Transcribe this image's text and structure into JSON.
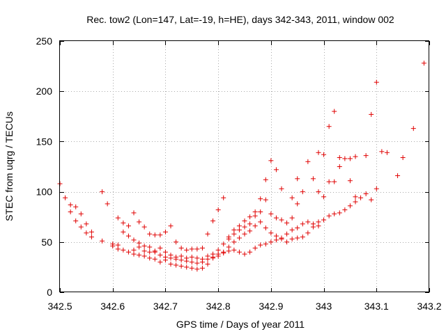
{
  "chart_data": {
    "type": "scatter",
    "title": "Rec. tow2 (Lon=147, Lat=-19, h=HE), days 342-343, 2011, window 002",
    "xlabel": "GPS time / Days of year 2011",
    "ylabel": "STEC from uqrg / TECUs",
    "xlim": [
      342.5,
      343.2
    ],
    "ylim": [
      0,
      250
    ],
    "xticks": [
      "342.5",
      "342.6",
      "342.7",
      "342.8",
      "342.9",
      "343",
      "343.1",
      "343.2"
    ],
    "yticks": [
      "0",
      "50",
      "100",
      "150",
      "200",
      "250"
    ],
    "grid": true,
    "marker": "+",
    "color": "#e00000",
    "series": [
      {
        "points": [
          [
            342.5,
            108
          ],
          [
            342.51,
            94
          ],
          [
            342.52,
            87
          ],
          [
            342.53,
            85
          ],
          [
            342.54,
            78
          ],
          [
            342.55,
            68
          ],
          [
            342.56,
            60
          ],
          [
            342.58,
            100
          ],
          [
            342.59,
            88
          ],
          [
            342.61,
            74
          ],
          [
            342.62,
            69
          ],
          [
            342.63,
            66
          ],
          [
            342.64,
            79
          ],
          [
            342.65,
            70
          ],
          [
            342.66,
            65
          ],
          [
            342.67,
            58
          ],
          [
            342.68,
            57
          ],
          [
            342.69,
            57
          ],
          [
            342.7,
            60
          ],
          [
            342.71,
            66
          ],
          [
            342.72,
            50
          ],
          [
            342.73,
            44
          ],
          [
            342.74,
            42
          ],
          [
            342.75,
            43
          ],
          [
            342.76,
            43
          ],
          [
            342.77,
            44
          ],
          [
            342.78,
            58
          ],
          [
            342.79,
            71
          ],
          [
            342.8,
            82
          ],
          [
            342.81,
            94
          ],
          [
            342.82,
            55
          ],
          [
            342.83,
            62
          ],
          [
            342.84,
            66
          ],
          [
            342.85,
            71
          ],
          [
            342.86,
            75
          ],
          [
            342.87,
            80
          ],
          [
            342.88,
            93
          ],
          [
            342.89,
            112
          ],
          [
            342.9,
            131
          ],
          [
            342.91,
            122
          ],
          [
            342.92,
            103
          ],
          [
            342.94,
            94
          ],
          [
            342.95,
            113
          ],
          [
            342.97,
            130
          ],
          [
            342.99,
            139
          ],
          [
            343.0,
            137
          ],
          [
            343.01,
            165
          ],
          [
            343.02,
            180
          ],
          [
            343.03,
            134
          ],
          [
            343.04,
            133
          ],
          [
            343.05,
            133
          ],
          [
            343.06,
            135
          ],
          [
            343.08,
            136
          ],
          [
            343.09,
            177
          ],
          [
            343.1,
            209
          ],
          [
            343.11,
            140
          ],
          [
            343.12,
            139
          ],
          [
            343.14,
            116
          ],
          [
            343.15,
            134
          ],
          [
            343.17,
            163
          ],
          [
            343.19,
            228
          ],
          [
            342.52,
            80
          ],
          [
            342.53,
            71
          ],
          [
            342.54,
            65
          ],
          [
            342.55,
            59
          ],
          [
            342.56,
            55
          ],
          [
            342.58,
            51
          ],
          [
            342.6,
            48
          ],
          [
            342.61,
            47
          ],
          [
            342.62,
            60
          ],
          [
            342.63,
            56
          ],
          [
            342.64,
            52
          ],
          [
            342.65,
            49
          ],
          [
            342.66,
            46
          ],
          [
            342.67,
            45
          ],
          [
            342.68,
            40
          ],
          [
            342.69,
            37
          ],
          [
            342.7,
            35
          ],
          [
            342.71,
            34
          ],
          [
            342.72,
            33
          ],
          [
            342.73,
            32
          ],
          [
            342.74,
            31
          ],
          [
            342.75,
            30
          ],
          [
            342.76,
            29
          ],
          [
            342.77,
            30
          ],
          [
            342.78,
            33
          ],
          [
            342.79,
            38
          ],
          [
            342.8,
            42
          ],
          [
            342.81,
            48
          ],
          [
            342.82,
            53
          ],
          [
            342.83,
            58
          ],
          [
            342.84,
            62
          ],
          [
            342.85,
            65
          ],
          [
            342.86,
            68
          ],
          [
            342.87,
            76
          ],
          [
            342.88,
            80
          ],
          [
            342.89,
            92
          ],
          [
            342.9,
            78
          ],
          [
            342.91,
            74
          ],
          [
            342.92,
            72
          ],
          [
            342.93,
            69
          ],
          [
            342.94,
            74
          ],
          [
            342.95,
            88
          ],
          [
            342.96,
            100
          ],
          [
            342.98,
            113
          ],
          [
            342.99,
            100
          ],
          [
            343.0,
            95
          ],
          [
            343.01,
            110
          ],
          [
            343.02,
            110
          ],
          [
            343.03,
            125
          ],
          [
            343.05,
            111
          ],
          [
            343.06,
            95
          ],
          [
            343.08,
            98
          ],
          [
            343.09,
            92
          ],
          [
            343.1,
            103
          ],
          [
            342.6,
            46
          ],
          [
            342.61,
            43
          ],
          [
            342.62,
            42
          ],
          [
            342.63,
            40
          ],
          [
            342.64,
            38
          ],
          [
            342.65,
            37
          ],
          [
            342.66,
            36
          ],
          [
            342.67,
            34
          ],
          [
            342.68,
            33
          ],
          [
            342.69,
            30
          ],
          [
            342.7,
            32
          ],
          [
            342.71,
            28
          ],
          [
            342.72,
            27
          ],
          [
            342.73,
            26
          ],
          [
            342.74,
            25
          ],
          [
            342.75,
            24
          ],
          [
            342.76,
            23
          ],
          [
            342.77,
            24
          ],
          [
            342.78,
            28
          ],
          [
            342.79,
            34
          ],
          [
            342.8,
            38
          ],
          [
            342.81,
            40
          ],
          [
            342.82,
            45
          ],
          [
            342.83,
            50
          ],
          [
            342.84,
            54
          ],
          [
            342.85,
            58
          ],
          [
            342.86,
            61
          ],
          [
            342.87,
            66
          ],
          [
            342.88,
            70
          ],
          [
            342.89,
            64
          ],
          [
            342.9,
            59
          ],
          [
            342.91,
            56
          ],
          [
            342.92,
            53
          ],
          [
            342.93,
            50
          ],
          [
            342.94,
            53
          ],
          [
            342.95,
            54
          ],
          [
            342.96,
            55
          ],
          [
            342.97,
            59
          ],
          [
            342.98,
            65
          ],
          [
            342.99,
            70
          ],
          [
            343.0,
            72
          ],
          [
            343.01,
            76
          ],
          [
            343.02,
            78
          ],
          [
            343.03,
            79
          ],
          [
            343.04,
            82
          ],
          [
            343.05,
            86
          ],
          [
            343.06,
            90
          ],
          [
            343.07,
            94
          ],
          [
            342.64,
            42
          ],
          [
            342.65,
            45
          ],
          [
            342.66,
            41
          ],
          [
            342.67,
            40
          ],
          [
            342.68,
            41
          ],
          [
            342.69,
            44
          ],
          [
            342.7,
            40
          ],
          [
            342.71,
            37
          ],
          [
            342.72,
            35
          ],
          [
            342.73,
            36
          ],
          [
            342.74,
            34
          ],
          [
            342.75,
            35
          ],
          [
            342.76,
            34
          ],
          [
            342.77,
            33
          ],
          [
            342.78,
            36
          ],
          [
            342.79,
            35
          ],
          [
            342.8,
            36
          ],
          [
            342.81,
            39
          ],
          [
            342.82,
            41
          ],
          [
            342.83,
            42
          ],
          [
            342.84,
            40
          ],
          [
            342.85,
            38
          ],
          [
            342.86,
            40
          ],
          [
            342.87,
            44
          ],
          [
            342.88,
            47
          ],
          [
            342.89,
            48
          ],
          [
            342.9,
            50
          ],
          [
            342.91,
            52
          ],
          [
            342.92,
            54
          ],
          [
            342.93,
            58
          ],
          [
            342.94,
            62
          ],
          [
            342.95,
            64
          ],
          [
            342.96,
            68
          ],
          [
            342.97,
            70
          ],
          [
            342.98,
            68
          ],
          [
            342.99,
            66
          ]
        ]
      }
    ]
  }
}
